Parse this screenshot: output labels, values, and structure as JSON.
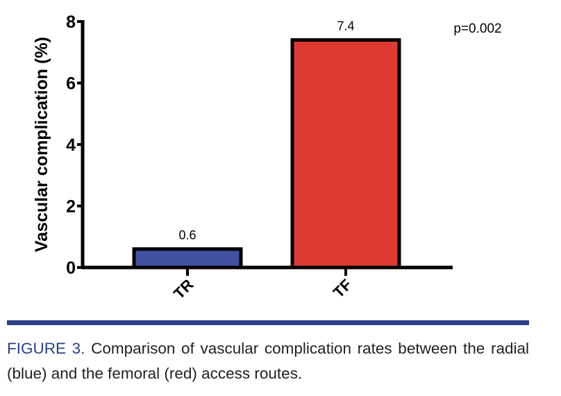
{
  "chart_data": {
    "type": "bar",
    "categories": [
      "TR",
      "TF"
    ],
    "values": [
      0.6,
      7.4
    ],
    "data_labels": [
      "0.6",
      "7.4"
    ],
    "colors": [
      "#3f51a0",
      "#de3a32"
    ],
    "ylabel": "Vascular complication (%)",
    "xlabel": "",
    "ylim": [
      0,
      8
    ],
    "yticks": [
      0,
      2,
      4,
      6,
      8
    ],
    "grid": false,
    "annotation": "p=0.002"
  },
  "caption": {
    "label": "FIGURE 3.",
    "text": " Comparison of vascular complication rates between the radial (blue) and the femoral (red) access routes."
  },
  "rule_color": "#2c3f88"
}
